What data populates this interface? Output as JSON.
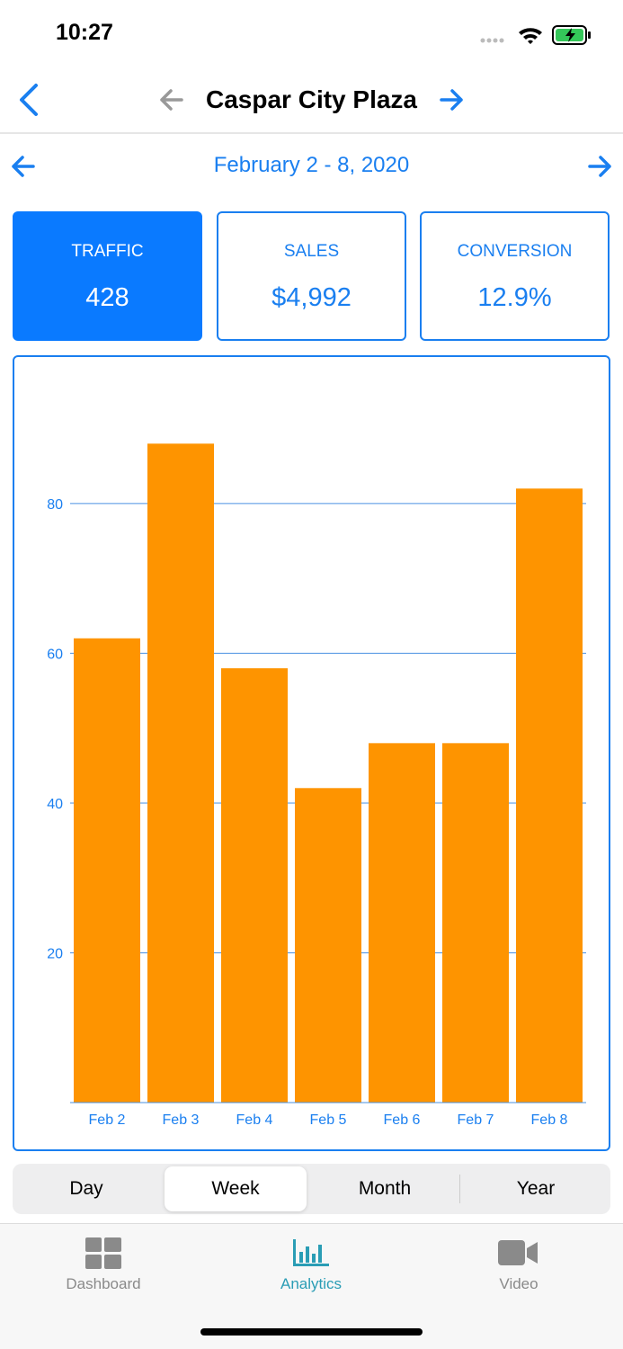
{
  "status_bar": {
    "time": "10:27"
  },
  "header": {
    "title": "Caspar City Plaza",
    "date_range": "February 2 - 8, 2020"
  },
  "metrics": [
    {
      "label": "TRAFFIC",
      "value": "428",
      "selected": true
    },
    {
      "label": "SALES",
      "value": "$4,992",
      "selected": false
    },
    {
      "label": "CONVERSION",
      "value": "12.9%",
      "selected": false
    }
  ],
  "chart_data": {
    "type": "bar",
    "categories": [
      "Feb 2",
      "Feb 3",
      "Feb 4",
      "Feb 5",
      "Feb 6",
      "Feb 7",
      "Feb 8"
    ],
    "values": [
      62,
      88,
      58,
      42,
      48,
      48,
      82
    ],
    "color": "#fe9400",
    "ylim": [
      0,
      92
    ],
    "yticks": [
      20,
      40,
      60,
      80
    ],
    "grid": true
  },
  "segments": {
    "options": [
      "Day",
      "Week",
      "Month",
      "Year"
    ],
    "selected": 1
  },
  "tabs": {
    "items": [
      "Dashboard",
      "Analytics",
      "Video"
    ],
    "active": 1
  }
}
